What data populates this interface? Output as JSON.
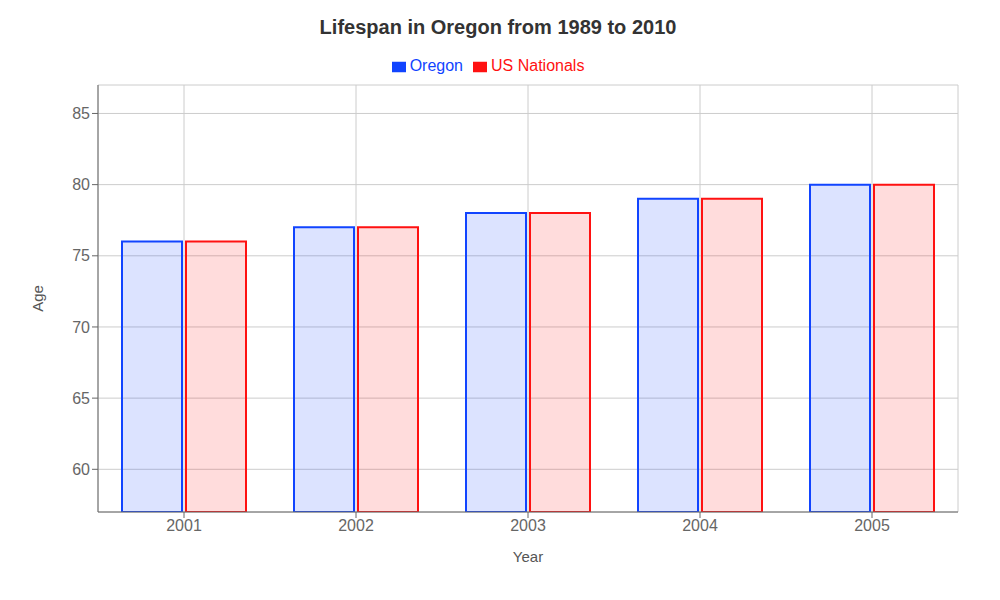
{
  "chart_data": {
    "type": "bar",
    "title": "Lifespan in Oregon from 1989 to 2010",
    "x_label": "Year",
    "y_label": "Age",
    "categories": [
      "2001",
      "2002",
      "2003",
      "2004",
      "2005"
    ],
    "series": [
      {
        "name": "Oregon",
        "color": "#1144ff",
        "values": [
          76,
          77,
          78,
          79,
          80
        ]
      },
      {
        "name": "US Nationals",
        "color": "#ff1111",
        "values": [
          76,
          77,
          78,
          79,
          80
        ]
      }
    ],
    "ylim": [
      57,
      87
    ],
    "yticks": [
      60,
      65,
      70,
      75,
      80,
      85
    ],
    "grid": true,
    "legend": "top"
  }
}
